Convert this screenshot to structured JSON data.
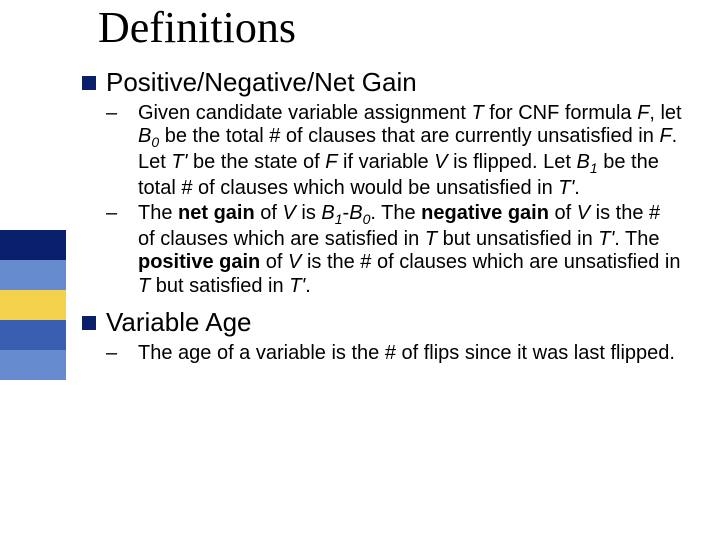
{
  "title": "Definitions",
  "stripes": {
    "colors": [
      "#0a1f6b",
      "#668ccf",
      "#f2d24a",
      "#3b5fb0",
      "#668ccf"
    ]
  },
  "bullets": {
    "square_color": "#0a1f6b",
    "item1": {
      "label": "Positive/Negative/Net Gain",
      "sub1_pre": "Given candidate variable assignment ",
      "sub1_T": "T",
      "sub1_for": " for  CNF formula ",
      "sub1_F": "F",
      "sub1_let": ", let ",
      "sub1_B": "B",
      "sub1_zero": "0",
      "sub1_betotal": " be the total # of clauses that are currently unsatisfied in ",
      "sub1_F2": "F",
      "sub1_letTprime": ". Let ",
      "sub1_Tprime": "T'",
      "sub1_bestate": " be the state of ",
      "sub1_F3": "F",
      "sub1_ifvar": " if variable ",
      "sub1_V": "V",
      "sub1_isflipped": " is flipped. Let ",
      "sub1_B1": "B",
      "sub1_one": "1",
      "sub1_betotal2": " be the total # of clauses which would be unsatisfied in ",
      "sub1_Tprime2": "T'",
      "sub1_period": ".",
      "sub2_the": "The ",
      "sub2_netgain": "net gain",
      "sub2_of": " of ",
      "sub2_V": "V",
      "sub2_is": " is ",
      "sub2_B1": "B",
      "sub2_one": "1",
      "sub2_minus": "-",
      "sub2_B0": "B",
      "sub2_zero": "0",
      "sub2_dotThe": ". The ",
      "sub2_neggain": "negative gain",
      "sub2_of2": " of ",
      "sub2_V2": "V",
      "sub2_isnum": " is the # of clauses which are satisfied in ",
      "sub2_T": "T",
      "sub2_butun": " but unsatisfied in ",
      "sub2_Tprime": "T'",
      "sub2_dotThe2": ". The ",
      "sub2_posgain": "positive gain",
      "sub2_of3": " of ",
      "sub2_V3": "V",
      "sub2_isnum2": " is the # of clauses which are unsatisfied in ",
      "sub2_T2": "T",
      "sub2_butsat": " but satisfied in ",
      "sub2_Tprime2": "T'",
      "sub2_period": "."
    },
    "item2": {
      "label": "Variable Age",
      "sub1": "The age of a variable is the # of flips since it was last flipped."
    }
  },
  "styling": {
    "background_color": "#ffffff",
    "title_font": "Times New Roman",
    "title_fontsize": 44,
    "body_font": "Arial",
    "level1_fontsize": 26,
    "level2_fontsize": 20,
    "text_color": "#000000"
  }
}
